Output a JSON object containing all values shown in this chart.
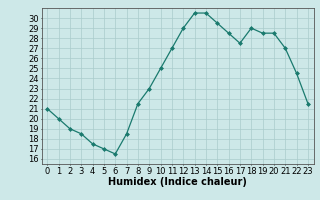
{
  "x": [
    0,
    1,
    2,
    3,
    4,
    5,
    6,
    7,
    8,
    9,
    10,
    11,
    12,
    13,
    14,
    15,
    16,
    17,
    18,
    19,
    20,
    21,
    22,
    23
  ],
  "y": [
    21,
    20,
    19,
    18.5,
    17.5,
    17,
    16.5,
    18.5,
    21.5,
    23,
    25,
    27,
    29,
    30.5,
    30.5,
    29.5,
    28.5,
    27.5,
    29,
    28.5,
    28.5,
    27,
    24.5,
    21.5
  ],
  "xlabel": "Humidex (Indice chaleur)",
  "ylim": [
    15.5,
    31
  ],
  "xlim": [
    -0.5,
    23.5
  ],
  "yticks": [
    16,
    17,
    18,
    19,
    20,
    21,
    22,
    23,
    24,
    25,
    26,
    27,
    28,
    29,
    30
  ],
  "xticks": [
    0,
    1,
    2,
    3,
    4,
    5,
    6,
    7,
    8,
    9,
    10,
    11,
    12,
    13,
    14,
    15,
    16,
    17,
    18,
    19,
    20,
    21,
    22,
    23
  ],
  "line_color": "#1a7a6e",
  "marker_color": "#1a7a6e",
  "bg_color": "#cde8e8",
  "grid_color": "#aacccc",
  "label_fontsize": 7,
  "tick_fontsize": 6
}
